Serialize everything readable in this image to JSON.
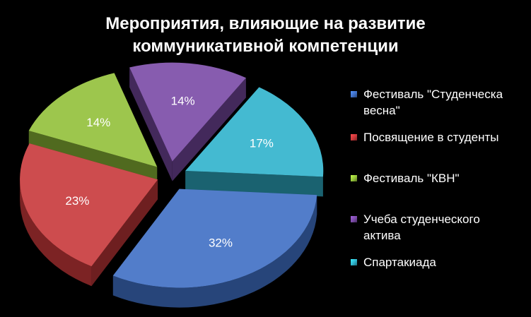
{
  "chart_data": {
    "type": "pie",
    "title_lines": [
      "Мероприятия, влияющие на развитие",
      "коммуникативной компетенции"
    ],
    "slices": [
      {
        "label": "Фестиваль \"Студенческа весна\"",
        "legend_lines": [
          "Фестиваль \"Студенческа",
          "весна\""
        ],
        "value": 32,
        "value_label": "32%",
        "color": "#3f6fc4"
      },
      {
        "label": "Посвящение в студенты",
        "legend_lines": [
          "Посвящение в студенты"
        ],
        "value": 23,
        "value_label": "23%",
        "color": "#c8383a"
      },
      {
        "label": "Фестиваль \"КВН\"",
        "legend_lines": [
          "Фестиваль \"КВН\""
        ],
        "value": 14,
        "value_label": "14%",
        "color": "#92c039"
      },
      {
        "label": "Учеба студенческого актива",
        "legend_lines": [
          "Учеба студенческого",
          "актива"
        ],
        "value": 14,
        "value_label": "14%",
        "color": "#7a4aa6"
      },
      {
        "label": "Спартакиада",
        "legend_lines": [
          "Спартакиада"
        ],
        "value": 17,
        "value_label": "17%",
        "color": "#2fb3cc"
      }
    ],
    "legend_position": "right",
    "style": "exploded 3D pie"
  }
}
